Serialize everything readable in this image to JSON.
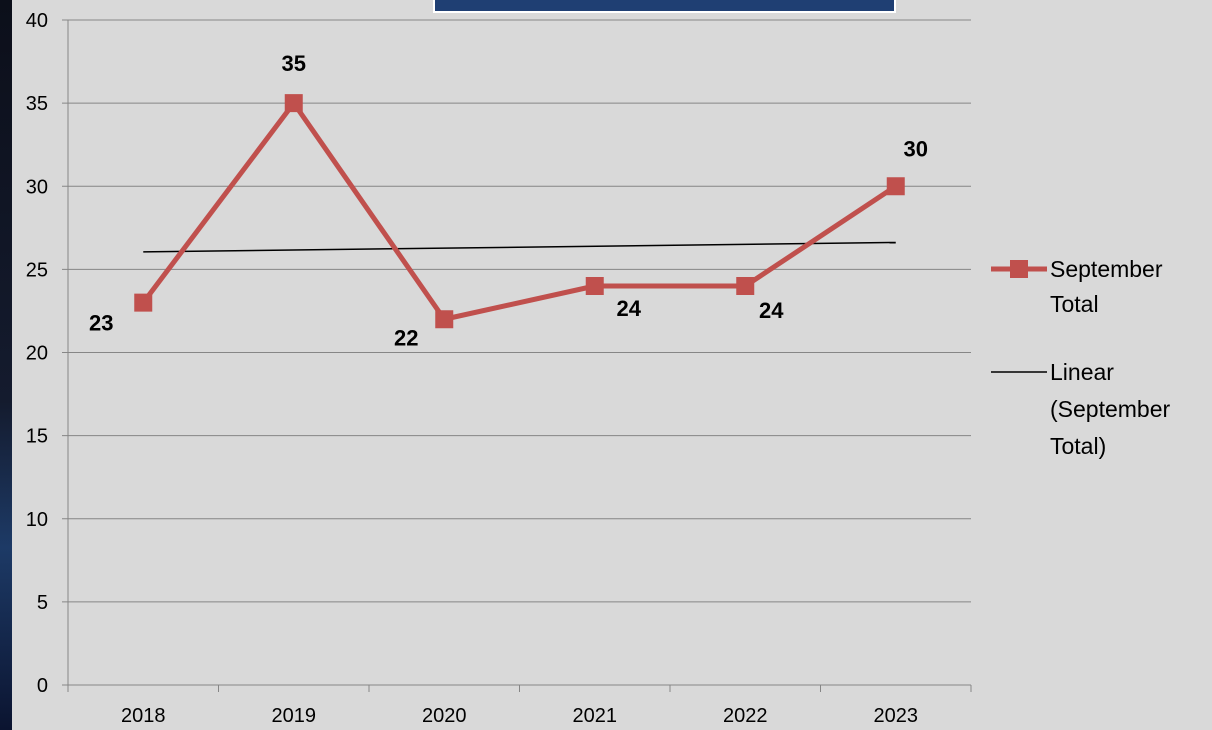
{
  "chart_data": {
    "type": "line",
    "categories": [
      "2018",
      "2019",
      "2020",
      "2021",
      "2022",
      "2023"
    ],
    "series": [
      {
        "name": "September Total",
        "values": [
          23,
          35,
          22,
          24,
          24,
          30
        ],
        "color": "#c0504d",
        "marker": "square",
        "data_labels": [
          "23",
          "35",
          "22",
          "24",
          "24",
          "30"
        ]
      }
    ],
    "trendline": {
      "type": "linear",
      "of_series": "September Total",
      "name": "Linear (September Total)",
      "start": 26.05,
      "end": 26.62,
      "color": "#000000"
    },
    "ylim": [
      0,
      40
    ],
    "yticks": [
      "0",
      "5",
      "10",
      "15",
      "20",
      "25",
      "30",
      "35",
      "40"
    ],
    "grid": true,
    "legend": {
      "position": "right",
      "entries": [
        {
          "lines": [
            "September",
            "Total"
          ]
        },
        {
          "lines": [
            "Linear",
            "(September",
            "Total)"
          ]
        }
      ]
    }
  }
}
